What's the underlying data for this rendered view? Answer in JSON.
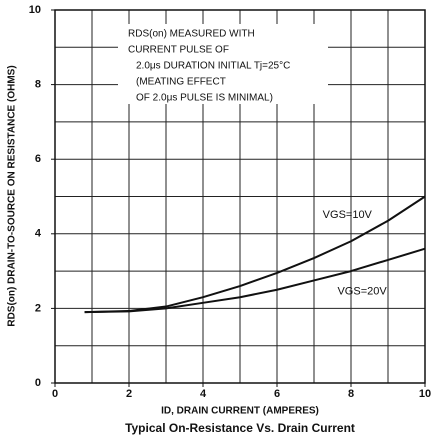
{
  "chart_data": {
    "type": "line",
    "title": "Typical On-Resistance Vs. Drain Current",
    "x_label": "ID, DRAIN CURRENT (AMPERES)",
    "y_label": "RDS(on) DRAIN-TO-SOURCE ON RESISTANCE (OHMS)",
    "annotation": [
      "RDS(on) MEASURED WITH",
      "CURRENT PULSE OF",
      "2.0μs DURATION INITIAL Tj=25°C",
      "(MEATING EFFECT",
      "OF 2.0μs PULSE IS MINIMAL)"
    ],
    "x": [
      0.8,
      2,
      3,
      4,
      5,
      6,
      7,
      8,
      9,
      10
    ],
    "series": [
      {
        "name": "VGS=10V",
        "color": "#111111",
        "values": [
          1.9,
          1.93,
          2.05,
          2.3,
          2.6,
          2.95,
          3.35,
          3.8,
          4.35,
          5.0
        ]
      },
      {
        "name": "VGS=20V",
        "color": "#111111",
        "values": [
          1.9,
          1.92,
          2.0,
          2.15,
          2.3,
          2.5,
          2.75,
          3.0,
          3.3,
          3.6
        ]
      }
    ],
    "xlim": [
      0,
      10
    ],
    "ylim": [
      0,
      10
    ],
    "xticks": [
      0,
      2,
      4,
      6,
      8,
      10
    ],
    "yticks": [
      0,
      2,
      4,
      6,
      8,
      10
    ],
    "xgrid": [
      1,
      2,
      3,
      4,
      5,
      6,
      7,
      8,
      9
    ],
    "ygrid": [
      1,
      2,
      3,
      4,
      5,
      6,
      7,
      8,
      9
    ],
    "grid": true
  }
}
